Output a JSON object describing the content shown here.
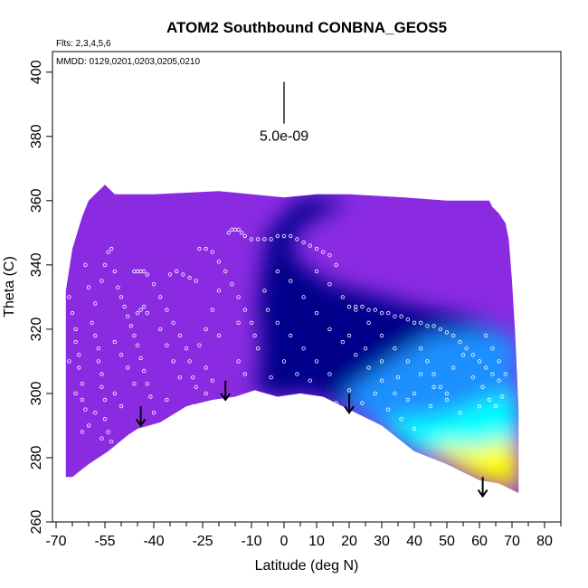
{
  "chart_data": {
    "type": "heatmap",
    "title": "ATOM2 Southbound CONBNA_GEOS5",
    "flights_note": "Flts: 2,3,4,5,6",
    "dates_note": "MMDD: 0129,0201,0203,0205,0210",
    "scale_label": "5.0e-09",
    "xlabel": "Latitude (deg N)",
    "ylabel": "Theta (C)",
    "xlim": [
      -70,
      85
    ],
    "ylim": [
      260,
      405
    ],
    "x_ticks": [
      "-70",
      "-55",
      "-40",
      "-25",
      "-10",
      "0",
      "10",
      "20",
      "30",
      "40",
      "50",
      "60",
      "70",
      "80"
    ],
    "x_tick_values": [
      -70,
      -55,
      -40,
      -25,
      -10,
      0,
      10,
      20,
      30,
      40,
      50,
      60,
      70,
      80
    ],
    "x_minor_ticks": [
      -65,
      -60,
      -50,
      -45,
      -35,
      -30,
      -20,
      -15,
      -5,
      5,
      15,
      25,
      35,
      45,
      55,
      65,
      75,
      85
    ],
    "y_ticks": [
      "260",
      "280",
      "300",
      "320",
      "340",
      "360",
      "380",
      "400"
    ],
    "y_tick_values": [
      260,
      280,
      300,
      320,
      340,
      360,
      380,
      400
    ],
    "scale_bar": {
      "x": 0,
      "y_top": 397,
      "y_bottom": 384
    },
    "colors": {
      "low": "#8a2be2",
      "mid": "#00008b",
      "high_blue": "#1e90ff",
      "cyan": "#00ffff",
      "max": "#ffff00"
    },
    "top_boundary": [
      [
        -67,
        332
      ],
      [
        -65,
        345
      ],
      [
        -62,
        355
      ],
      [
        -60,
        360
      ],
      [
        -55,
        365
      ],
      [
        -52,
        362
      ],
      [
        -40,
        362
      ],
      [
        -20,
        363
      ],
      [
        -10,
        362
      ],
      [
        0,
        361
      ],
      [
        10,
        362
      ],
      [
        20,
        362
      ],
      [
        37,
        361
      ],
      [
        50,
        360
      ],
      [
        63,
        360
      ],
      [
        64,
        358
      ],
      [
        66,
        356
      ],
      [
        68,
        353
      ],
      [
        69,
        348
      ],
      [
        70,
        335
      ],
      [
        71,
        318
      ],
      [
        72,
        295
      ],
      [
        72,
        269
      ]
    ],
    "bottom_boundary": [
      [
        72,
        269
      ],
      [
        66,
        272
      ],
      [
        60,
        273
      ],
      [
        50,
        278
      ],
      [
        40,
        282
      ],
      [
        30,
        290
      ],
      [
        20,
        295
      ],
      [
        12,
        299
      ],
      [
        5,
        300
      ],
      [
        -2,
        299
      ],
      [
        -9,
        301
      ],
      [
        -15,
        299
      ],
      [
        -22,
        298
      ],
      [
        -30,
        296
      ],
      [
        -38,
        291
      ],
      [
        -45,
        289
      ],
      [
        -48,
        287
      ],
      [
        -54,
        282
      ],
      [
        -60,
        278
      ],
      [
        -65,
        274
      ],
      [
        -67,
        274
      ]
    ],
    "regions": [
      {
        "poly": [
          [
            5,
            300
          ],
          [
            12,
            299
          ],
          [
            20,
            295
          ],
          [
            30,
            290
          ],
          [
            40,
            282
          ],
          [
            50,
            278
          ],
          [
            60,
            273
          ],
          [
            66,
            272
          ],
          [
            72,
            269
          ],
          [
            72,
            295
          ],
          [
            71,
            318
          ],
          [
            66,
            320
          ],
          [
            55,
            324
          ],
          [
            40,
            327
          ],
          [
            30,
            330
          ],
          [
            15,
            334
          ],
          [
            8,
            338
          ],
          [
            2,
            344
          ],
          [
            5,
            352
          ],
          [
            20,
            360
          ],
          [
            5,
            361
          ],
          [
            -5,
            350
          ],
          [
            -8,
            330
          ],
          [
            -7,
            310
          ],
          [
            -9,
            301
          ],
          [
            -2,
            299
          ]
        ],
        "value": 0.35
      },
      {
        "poly": [
          [
            25,
            292
          ],
          [
            35,
            287
          ],
          [
            45,
            281
          ],
          [
            55,
            277
          ],
          [
            66,
            272
          ],
          [
            72,
            269
          ],
          [
            72,
            300
          ],
          [
            71,
            318
          ],
          [
            60,
            320
          ],
          [
            45,
            318
          ],
          [
            35,
            312
          ],
          [
            25,
            305
          ],
          [
            18,
            300
          ]
        ],
        "value": 0.6
      },
      {
        "poly": [
          [
            30,
            290
          ],
          [
            40,
            283
          ],
          [
            50,
            279
          ],
          [
            60,
            274
          ],
          [
            66,
            272
          ],
          [
            72,
            269
          ],
          [
            72,
            300
          ],
          [
            62,
            298
          ],
          [
            52,
            294
          ],
          [
            42,
            292
          ],
          [
            35,
            292
          ]
        ],
        "value": 0.8
      },
      {
        "poly": [
          [
            44,
            282
          ],
          [
            52,
            278
          ],
          [
            60,
            273
          ],
          [
            66,
            272
          ],
          [
            72,
            269
          ],
          [
            72,
            285
          ],
          [
            65,
            285
          ],
          [
            58,
            283
          ],
          [
            50,
            284
          ]
        ],
        "value": 1.0
      }
    ],
    "arrows": [
      {
        "x": -44,
        "y_top": 296,
        "y_bottom": 290
      },
      {
        "x": -18,
        "y_top": 304,
        "y_bottom": 298
      },
      {
        "x": 20,
        "y_top": 300,
        "y_bottom": 294
      },
      {
        "x": 61,
        "y_top": 274,
        "y_bottom": 268
      }
    ],
    "sample_points_note": "aircraft sample locations along southbound flights",
    "samples": [
      [
        -66,
        330
      ],
      [
        -65,
        325
      ],
      [
        -64,
        320
      ],
      [
        -64,
        316
      ],
      [
        -63,
        312
      ],
      [
        -63,
        308
      ],
      [
        -62,
        303
      ],
      [
        -62,
        298
      ],
      [
        -61,
        295
      ],
      [
        -60,
        290
      ],
      [
        -59,
        322
      ],
      [
        -58,
        318
      ],
      [
        -57,
        314
      ],
      [
        -57,
        310
      ],
      [
        -56,
        306
      ],
      [
        -56,
        302
      ],
      [
        -55,
        298
      ],
      [
        -55,
        292
      ],
      [
        -54,
        288
      ],
      [
        -53,
        285
      ],
      [
        -56,
        335
      ],
      [
        -55,
        340
      ],
      [
        -54,
        344
      ],
      [
        -53,
        345
      ],
      [
        -52,
        338
      ],
      [
        -51,
        333
      ],
      [
        -50,
        330
      ],
      [
        -49,
        327
      ],
      [
        -48,
        324
      ],
      [
        -47,
        321
      ],
      [
        -46,
        318
      ],
      [
        -45,
        315
      ],
      [
        -44,
        311
      ],
      [
        -43,
        307
      ],
      [
        -42,
        303
      ],
      [
        -41,
        299
      ],
      [
        -45,
        325
      ],
      [
        -44,
        326
      ],
      [
        -43,
        327
      ],
      [
        -42,
        325
      ],
      [
        -46,
        338
      ],
      [
        -45,
        338
      ],
      [
        -44,
        338
      ],
      [
        -43,
        338
      ],
      [
        -42,
        337
      ],
      [
        -40,
        334
      ],
      [
        -38,
        330
      ],
      [
        -36,
        326
      ],
      [
        -34,
        322
      ],
      [
        -32,
        318
      ],
      [
        -30,
        314
      ],
      [
        -29,
        310
      ],
      [
        -28,
        305
      ],
      [
        -27,
        302
      ],
      [
        -35,
        337
      ],
      [
        -33,
        338
      ],
      [
        -31,
        337
      ],
      [
        -29,
        336
      ],
      [
        -27,
        335
      ],
      [
        -26,
        345
      ],
      [
        -24,
        345
      ],
      [
        -22,
        344
      ],
      [
        -20,
        341
      ],
      [
        -18,
        338
      ],
      [
        -16,
        334
      ],
      [
        -14,
        330
      ],
      [
        -12,
        326
      ],
      [
        -10,
        322
      ],
      [
        -9,
        318
      ],
      [
        -8,
        314
      ],
      [
        -17,
        350
      ],
      [
        -16,
        351
      ],
      [
        -15,
        351
      ],
      [
        -14,
        351
      ],
      [
        -13,
        350
      ],
      [
        -12,
        349
      ],
      [
        -10,
        348
      ],
      [
        -8,
        348
      ],
      [
        -6,
        348
      ],
      [
        -4,
        348
      ],
      [
        -2,
        349
      ],
      [
        0,
        349
      ],
      [
        2,
        349
      ],
      [
        4,
        348
      ],
      [
        6,
        347
      ],
      [
        8,
        346
      ],
      [
        10,
        345
      ],
      [
        12,
        344
      ],
      [
        14,
        343
      ],
      [
        16,
        340
      ],
      [
        -20,
        332
      ],
      [
        -22,
        326
      ],
      [
        -24,
        320
      ],
      [
        -26,
        315
      ],
      [
        -20,
        318
      ],
      [
        -14,
        322
      ],
      [
        -6,
        332
      ],
      [
        -2,
        338
      ],
      [
        2,
        335
      ],
      [
        6,
        330
      ],
      [
        10,
        325
      ],
      [
        14,
        320
      ],
      [
        18,
        316
      ],
      [
        22,
        312
      ],
      [
        26,
        308
      ],
      [
        30,
        304
      ],
      [
        34,
        300
      ],
      [
        38,
        298
      ],
      [
        10,
        338
      ],
      [
        14,
        334
      ],
      [
        18,
        330
      ],
      [
        22,
        326
      ],
      [
        26,
        322
      ],
      [
        30,
        318
      ],
      [
        34,
        314
      ],
      [
        38,
        310
      ],
      [
        42,
        306
      ],
      [
        46,
        302
      ],
      [
        50,
        298
      ],
      [
        54,
        294
      ],
      [
        20,
        327
      ],
      [
        22,
        327
      ],
      [
        24,
        327
      ],
      [
        26,
        326
      ],
      [
        28,
        326
      ],
      [
        30,
        325
      ],
      [
        32,
        325
      ],
      [
        34,
        324
      ],
      [
        36,
        324
      ],
      [
        38,
        323
      ],
      [
        40,
        322
      ],
      [
        42,
        322
      ],
      [
        44,
        321
      ],
      [
        46,
        321
      ],
      [
        48,
        320
      ],
      [
        50,
        319
      ],
      [
        52,
        318
      ],
      [
        54,
        316
      ],
      [
        56,
        314
      ],
      [
        58,
        312
      ],
      [
        60,
        310
      ],
      [
        62,
        308
      ],
      [
        64,
        306
      ],
      [
        66,
        304
      ],
      [
        42,
        314
      ],
      [
        44,
        310
      ],
      [
        46,
        306
      ],
      [
        48,
        302
      ],
      [
        50,
        300
      ],
      [
        52,
        308
      ],
      [
        55,
        312
      ],
      [
        58,
        305
      ],
      [
        61,
        302
      ],
      [
        63,
        298
      ],
      [
        45,
        296
      ],
      [
        40,
        300
      ],
      [
        35,
        305
      ],
      [
        30,
        310
      ],
      [
        25,
        314
      ],
      [
        20,
        318
      ],
      [
        14,
        306
      ],
      [
        10,
        310
      ],
      [
        6,
        314
      ],
      [
        2,
        318
      ],
      [
        -2,
        322
      ],
      [
        -5,
        326
      ],
      [
        16,
        297
      ],
      [
        20,
        301
      ],
      [
        24,
        297
      ],
      [
        28,
        300
      ],
      [
        32,
        295
      ],
      [
        36,
        292
      ],
      [
        40,
        289
      ],
      [
        62,
        318
      ],
      [
        64,
        314
      ],
      [
        66,
        310
      ],
      [
        68,
        306
      ],
      [
        67,
        299
      ],
      [
        65,
        296
      ],
      [
        60,
        296
      ],
      [
        -60,
        333
      ],
      [
        -58,
        328
      ],
      [
        -52,
        316
      ],
      [
        -50,
        312
      ],
      [
        -48,
        308
      ],
      [
        -46,
        303
      ],
      [
        -38,
        320
      ],
      [
        -36,
        315
      ],
      [
        -34,
        310
      ],
      [
        -32,
        305
      ],
      [
        -24,
        308
      ],
      [
        -22,
        304
      ],
      [
        -14,
        310
      ],
      [
        -12,
        306
      ],
      [
        -4,
        305
      ],
      [
        0,
        310
      ],
      [
        4,
        306
      ],
      [
        8,
        304
      ],
      [
        -64,
        300
      ],
      [
        -62,
        288
      ],
      [
        -58,
        294
      ],
      [
        -56,
        286
      ],
      [
        -50,
        296
      ],
      [
        -52,
        300
      ],
      [
        -40,
        294
      ],
      [
        -36,
        298
      ],
      [
        -28,
        296
      ],
      [
        -24,
        300
      ],
      [
        -66,
        310
      ],
      [
        -61,
        340
      ]
    ]
  }
}
